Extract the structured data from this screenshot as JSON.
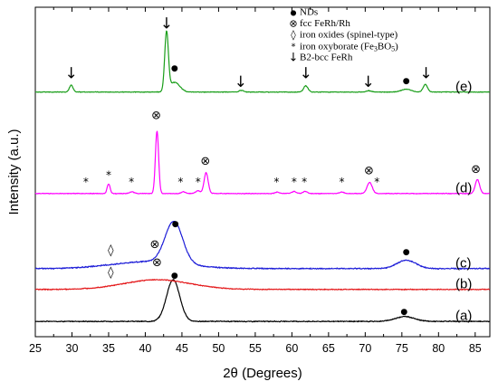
{
  "chart_data": {
    "type": "line",
    "xlabel": "2θ (Degrees)",
    "ylabel": "Intensity (a.u.)",
    "xlim": [
      25,
      87
    ],
    "x_ticks": [
      25,
      30,
      35,
      40,
      45,
      50,
      55,
      60,
      65,
      70,
      75,
      80,
      85
    ],
    "grid": false,
    "legend_position": "top-right",
    "legend": [
      {
        "symbol": "●",
        "label": "NDs"
      },
      {
        "symbol": "⊗",
        "label": "fcc FeRh/Rh"
      },
      {
        "symbol": "◊",
        "label": "iron oxides (spinel-type)"
      },
      {
        "symbol": "*",
        "label": "iron oxyborate (Fe",
        "sub1": "3",
        "mid": "BO",
        "sub2": "5",
        "end": ")"
      },
      {
        "symbol": "↓",
        "label": "B2-bcc FeRh"
      }
    ],
    "series": [
      {
        "label": "(a)",
        "color": "#000000",
        "baseline": 0.06,
        "noise": 0.004,
        "components": [
          {
            "type": "gauss",
            "center": 43.8,
            "amp": 0.3,
            "width": 0.9
          },
          {
            "type": "gauss",
            "center": 75.4,
            "amp": 0.035,
            "width": 1.3
          }
        ],
        "annotations": [
          {
            "symbol": "●",
            "x": 44.0,
            "y": 0.39
          },
          {
            "symbol": "●",
            "x": 75.3,
            "y": 0.13
          }
        ]
      },
      {
        "label": "(b)",
        "color": "#e41a1c",
        "baseline": 0.29,
        "noise": 0.004,
        "components": [
          {
            "type": "gauss",
            "center": 41.6,
            "amp": 0.07,
            "width": 4.5
          }
        ],
        "annotations": [
          {
            "symbol": "◊",
            "x": 35.3,
            "y": 0.41
          },
          {
            "symbol": "⊗",
            "x": 41.6,
            "y": 0.48
          }
        ]
      },
      {
        "label": "(c)",
        "color": "#1f1fd8",
        "baseline": 0.44,
        "noise": 0.005,
        "components": [
          {
            "type": "gauss",
            "center": 43.9,
            "amp": 0.3,
            "width": 1.2
          },
          {
            "type": "gauss",
            "center": 40.5,
            "amp": 0.05,
            "width": 5.0
          },
          {
            "type": "gauss",
            "center": 75.6,
            "amp": 0.06,
            "width": 1.3
          }
        ],
        "annotations": [
          {
            "symbol": "◊",
            "x": 35.3,
            "y": 0.57
          },
          {
            "symbol": "⊗",
            "x": 41.3,
            "y": 0.61
          },
          {
            "symbol": "●",
            "x": 44.1,
            "y": 0.76
          },
          {
            "symbol": "●",
            "x": 75.6,
            "y": 0.56
          }
        ]
      },
      {
        "label": "(d)",
        "color": "#ff00ff",
        "baseline": 0.98,
        "noise": 0.003,
        "components": [
          {
            "type": "gauss",
            "center": 41.6,
            "amp": 0.45,
            "width": 0.22
          },
          {
            "type": "gauss",
            "center": 48.3,
            "amp": 0.15,
            "width": 0.28
          },
          {
            "type": "gauss",
            "center": 70.6,
            "amp": 0.08,
            "width": 0.35
          },
          {
            "type": "gauss",
            "center": 85.3,
            "amp": 0.1,
            "width": 0.3
          },
          {
            "type": "gauss",
            "center": 35.0,
            "amp": 0.07,
            "width": 0.2
          },
          {
            "type": "gauss",
            "center": 38.2,
            "amp": 0.012,
            "width": 0.3
          },
          {
            "type": "gauss",
            "center": 45.2,
            "amp": 0.012,
            "width": 0.3
          },
          {
            "type": "gauss",
            "center": 47.2,
            "amp": 0.02,
            "width": 0.3
          },
          {
            "type": "gauss",
            "center": 58.0,
            "amp": 0.01,
            "width": 0.3
          },
          {
            "type": "gauss",
            "center": 60.3,
            "amp": 0.015,
            "width": 0.3
          },
          {
            "type": "gauss",
            "center": 61.8,
            "amp": 0.015,
            "width": 0.3
          },
          {
            "type": "gauss",
            "center": 66.8,
            "amp": 0.01,
            "width": 0.3
          }
        ],
        "annotations": [
          {
            "symbol": "*",
            "x": 31.9,
            "y": 1.06
          },
          {
            "symbol": "*",
            "x": 35.0,
            "y": 1.11
          },
          {
            "symbol": "*",
            "x": 38.1,
            "y": 1.06
          },
          {
            "symbol": "⊗",
            "x": 41.5,
            "y": 1.54
          },
          {
            "symbol": "*",
            "x": 44.8,
            "y": 1.06
          },
          {
            "symbol": "*",
            "x": 47.2,
            "y": 1.06
          },
          {
            "symbol": "⊗",
            "x": 48.2,
            "y": 1.21
          },
          {
            "symbol": "*",
            "x": 57.9,
            "y": 1.06
          },
          {
            "symbol": "*",
            "x": 60.3,
            "y": 1.06
          },
          {
            "symbol": "*",
            "x": 61.7,
            "y": 1.06
          },
          {
            "symbol": "*",
            "x": 66.8,
            "y": 1.06
          },
          {
            "symbol": "⊗",
            "x": 70.5,
            "y": 1.14
          },
          {
            "symbol": "*",
            "x": 71.6,
            "y": 1.06
          },
          {
            "symbol": "⊗",
            "x": 85.1,
            "y": 1.15
          }
        ]
      },
      {
        "label": "(e)",
        "color": "#1a9e1a",
        "baseline": 1.71,
        "noise": 0.003,
        "components": [
          {
            "type": "gauss",
            "center": 42.9,
            "amp": 0.42,
            "width": 0.25
          },
          {
            "type": "gauss",
            "center": 44.0,
            "amp": 0.07,
            "width": 0.7
          },
          {
            "type": "gauss",
            "center": 29.9,
            "amp": 0.05,
            "width": 0.25
          },
          {
            "type": "gauss",
            "center": 53.1,
            "amp": 0.012,
            "width": 0.3
          },
          {
            "type": "gauss",
            "center": 61.9,
            "amp": 0.045,
            "width": 0.3
          },
          {
            "type": "gauss",
            "center": 70.5,
            "amp": 0.01,
            "width": 0.35
          },
          {
            "type": "gauss",
            "center": 75.6,
            "amp": 0.02,
            "width": 0.7
          },
          {
            "type": "gauss",
            "center": 78.2,
            "amp": 0.055,
            "width": 0.3
          }
        ],
        "annotations": [
          {
            "symbol": "↓",
            "x": 29.9,
            "y": 1.84
          },
          {
            "symbol": "↓",
            "x": 42.9,
            "y": 2.2
          },
          {
            "symbol": "●",
            "x": 44.0,
            "y": 1.88
          },
          {
            "symbol": "↓",
            "x": 53.0,
            "y": 1.78
          },
          {
            "symbol": "↓",
            "x": 61.9,
            "y": 1.84
          },
          {
            "symbol": "↓",
            "x": 70.4,
            "y": 1.78
          },
          {
            "symbol": "●",
            "x": 75.6,
            "y": 1.79
          },
          {
            "symbol": "↓",
            "x": 78.3,
            "y": 1.84
          }
        ]
      }
    ]
  }
}
